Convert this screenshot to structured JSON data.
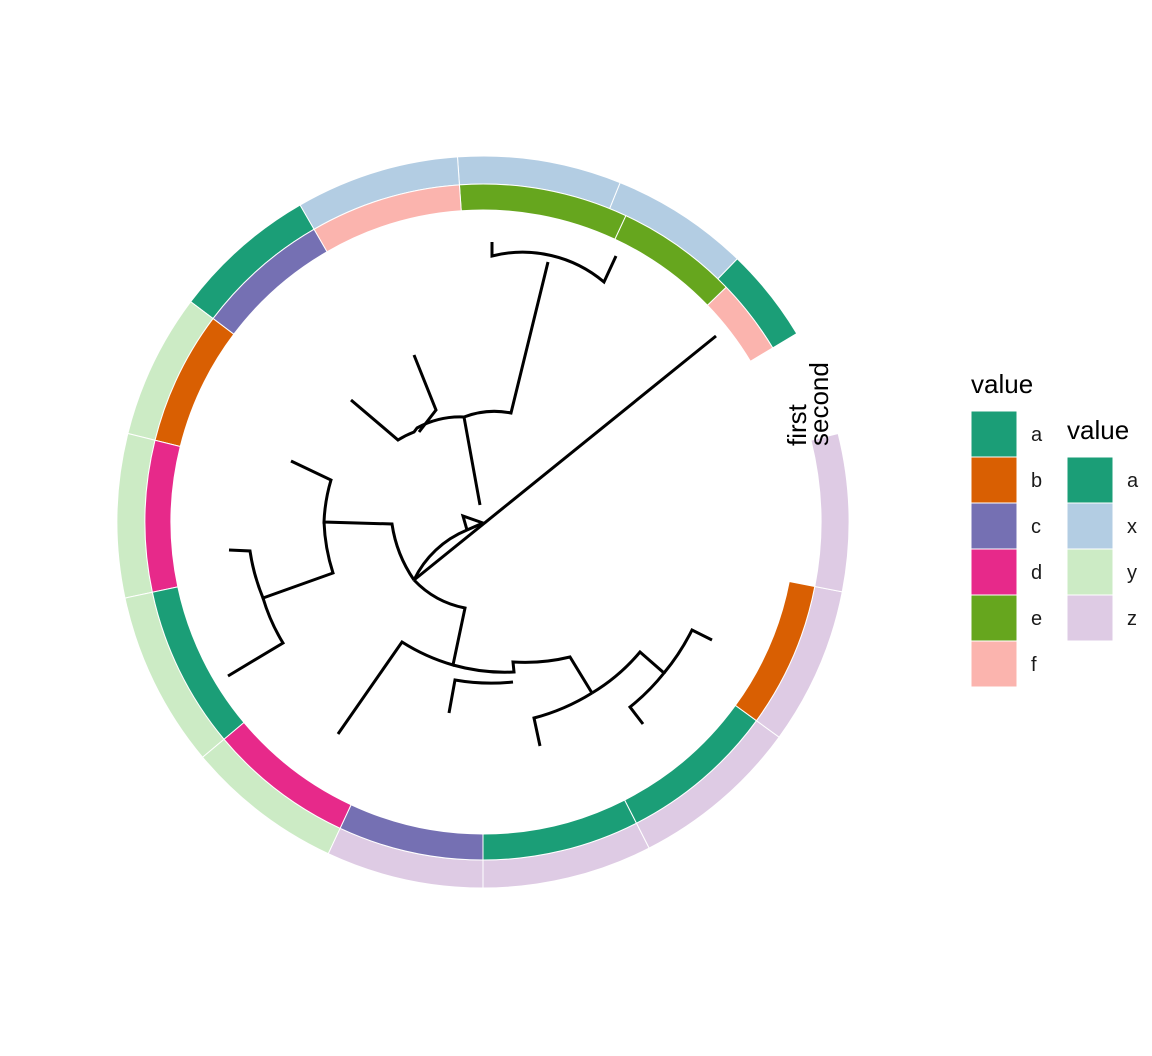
{
  "rings": {
    "inner_label": "first",
    "outer_label": "second",
    "inner": [
      "f",
      "e",
      "e",
      "f",
      "c",
      "b",
      "d",
      "a",
      "d",
      "c",
      "a",
      "a",
      "b"
    ],
    "outer": [
      "a",
      "x",
      "x",
      "x",
      "a",
      "y",
      "y",
      "y",
      "y",
      "z",
      "z",
      "z",
      "z",
      "z"
    ]
  },
  "legend_first": {
    "title": "value",
    "items": [
      {
        "label": "a",
        "color": "#1b9e77"
      },
      {
        "label": "b",
        "color": "#d95f02"
      },
      {
        "label": "c",
        "color": "#7570b3"
      },
      {
        "label": "d",
        "color": "#e7298a"
      },
      {
        "label": "e",
        "color": "#66a61e"
      },
      {
        "label": "f",
        "color": "#fbb4ae"
      }
    ]
  },
  "legend_second": {
    "title": "value",
    "items": [
      {
        "label": "a",
        "color": "#1b9e77"
      },
      {
        "label": "x",
        "color": "#b3cde3"
      },
      {
        "label": "y",
        "color": "#ccebc5"
      },
      {
        "label": "z",
        "color": "#decbe4"
      }
    ]
  }
}
